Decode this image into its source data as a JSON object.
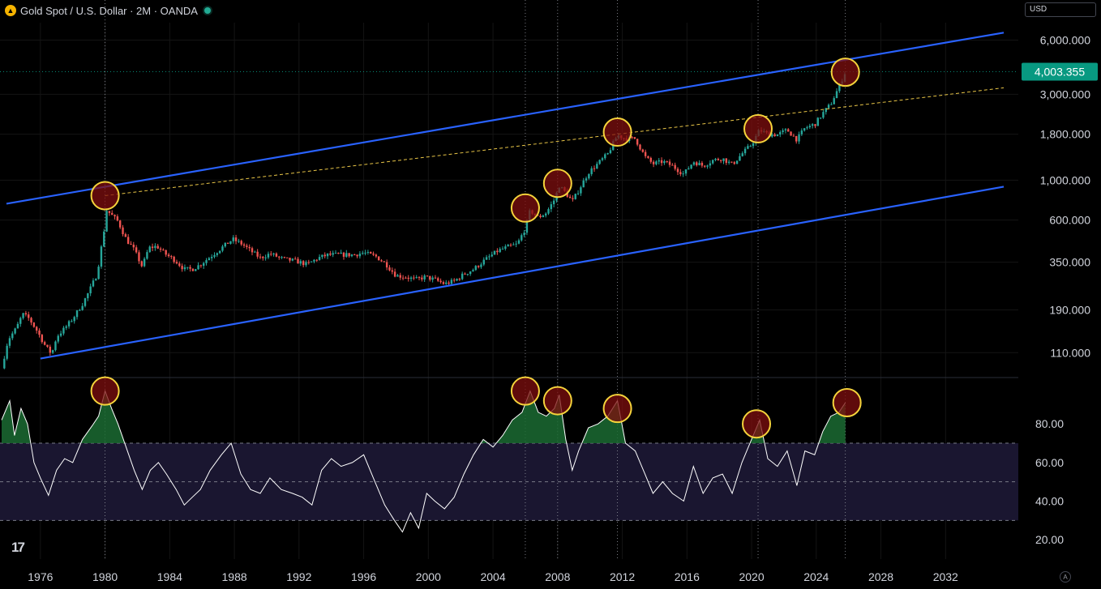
{
  "header": {
    "symbol_icon": "gold-coin-icon",
    "title": "Gold Spot / U.S. Dollar · 2M · OANDA",
    "status_color": "#22ab94"
  },
  "currency_select": {
    "value": "USD"
  },
  "colors": {
    "background": "#000000",
    "up_candle": "#26a69a",
    "down_candle": "#ef5350",
    "channel_line": "#2962ff",
    "dashed_trend": "#e8c547",
    "rsi_line": "#ffffff",
    "rsi_band": "#1a1630",
    "rsi_fill": "#1b6b32",
    "marker_fill": "#7f0f0f",
    "marker_stroke": "#f5d33b",
    "price_tag": "#089981"
  },
  "chart_data": [
    {
      "type": "candlestick",
      "pane": "price",
      "scale": "log",
      "x_range": [
        1973.5,
        2036.5
      ],
      "y_range": [
        80,
        7500
      ],
      "price_axis_ticks": [
        "6,000.000",
        "3,000.000",
        "1,800.000",
        "1,000.000",
        "600.000",
        "350.000",
        "190.000",
        "110.000"
      ],
      "price_tick_values": [
        6000,
        3000,
        1800,
        1000,
        600,
        350,
        190,
        110
      ],
      "last_price": "4,003.355",
      "last_price_value": 4003.355,
      "close_path": [
        [
          1973.6,
          90
        ],
        [
          1974.0,
          130
        ],
        [
          1974.5,
          150
        ],
        [
          1974.9,
          180
        ],
        [
          1975.3,
          170
        ],
        [
          1975.8,
          145
        ],
        [
          1976.3,
          120
        ],
        [
          1976.7,
          108
        ],
        [
          1977.0,
          135
        ],
        [
          1977.5,
          150
        ],
        [
          1978.0,
          170
        ],
        [
          1978.6,
          205
        ],
        [
          1979.0,
          240
        ],
        [
          1979.5,
          300
        ],
        [
          1979.9,
          500
        ],
        [
          1980.1,
          680
        ],
        [
          1980.4,
          640
        ],
        [
          1980.8,
          590
        ],
        [
          1981.3,
          470
        ],
        [
          1981.8,
          410
        ],
        [
          1982.3,
          330
        ],
        [
          1982.7,
          420
        ],
        [
          1983.2,
          430
        ],
        [
          1983.7,
          390
        ],
        [
          1984.3,
          360
        ],
        [
          1984.9,
          320
        ],
        [
          1985.4,
          320
        ],
        [
          1985.9,
          340
        ],
        [
          1986.5,
          375
        ],
        [
          1987.2,
          420
        ],
        [
          1987.9,
          470
        ],
        [
          1988.5,
          440
        ],
        [
          1989.0,
          405
        ],
        [
          1989.6,
          370
        ],
        [
          1990.2,
          390
        ],
        [
          1991.0,
          365
        ],
        [
          1991.8,
          355
        ],
        [
          1992.5,
          340
        ],
        [
          1993.2,
          370
        ],
        [
          1993.8,
          385
        ],
        [
          1994.6,
          385
        ],
        [
          1995.4,
          385
        ],
        [
          1996.0,
          395
        ],
        [
          1996.8,
          375
        ],
        [
          1997.4,
          340
        ],
        [
          1998.0,
          295
        ],
        [
          1998.6,
          290
        ],
        [
          1999.2,
          280
        ],
        [
          1999.8,
          290
        ],
        [
          2000.4,
          280
        ],
        [
          2001.0,
          265
        ],
        [
          2001.6,
          275
        ],
        [
          2002.2,
          300
        ],
        [
          2002.8,
          320
        ],
        [
          2003.5,
          360
        ],
        [
          2004.3,
          405
        ],
        [
          2004.9,
          425
        ],
        [
          2005.5,
          440
        ],
        [
          2006.0,
          540
        ],
        [
          2006.3,
          680
        ],
        [
          2006.8,
          620
        ],
        [
          2007.3,
          660
        ],
        [
          2007.8,
          780
        ],
        [
          2008.1,
          930
        ],
        [
          2008.5,
          850
        ],
        [
          2008.9,
          760
        ],
        [
          2009.3,
          880
        ],
        [
          2009.9,
          1100
        ],
        [
          2010.5,
          1240
        ],
        [
          2011.1,
          1400
        ],
        [
          2011.7,
          1780
        ],
        [
          2012.2,
          1700
        ],
        [
          2012.8,
          1700
        ],
        [
          2013.4,
          1350
        ],
        [
          2013.9,
          1230
        ],
        [
          2014.5,
          1270
        ],
        [
          2015.1,
          1200
        ],
        [
          2015.8,
          1080
        ],
        [
          2016.4,
          1270
        ],
        [
          2017.0,
          1200
        ],
        [
          2017.6,
          1290
        ],
        [
          2018.2,
          1320
        ],
        [
          2018.8,
          1220
        ],
        [
          2019.4,
          1400
        ],
        [
          2020.0,
          1580
        ],
        [
          2020.5,
          1900
        ],
        [
          2021.0,
          1800
        ],
        [
          2021.6,
          1790
        ],
        [
          2022.2,
          1900
        ],
        [
          2022.8,
          1680
        ],
        [
          2023.3,
          1950
        ],
        [
          2023.9,
          2040
        ],
        [
          2024.4,
          2350
        ],
        [
          2024.9,
          2650
        ],
        [
          2025.4,
          3300
        ],
        [
          2025.8,
          4003
        ]
      ],
      "channel_lines": [
        {
          "from": [
            1973.9,
            740
          ],
          "to": [
            2035.6,
            6600
          ]
        },
        {
          "from": [
            1976.0,
            102
          ],
          "to": [
            2035.6,
            920
          ]
        }
      ],
      "dashed_trendline": {
        "from": [
          1980.0,
          820
        ],
        "to": [
          2035.6,
          3260
        ]
      },
      "highlighted_peaks": [
        [
          1980.0,
          820
        ],
        [
          2006.0,
          700
        ],
        [
          2008.0,
          960
        ],
        [
          2011.7,
          1850
        ],
        [
          2020.4,
          1930
        ],
        [
          2025.8,
          3980
        ]
      ]
    },
    {
      "type": "line",
      "pane": "rsi",
      "y_range": [
        10,
        104
      ],
      "axis_ticks": [
        "80.00",
        "60.00",
        "40.00",
        "20.00"
      ],
      "axis_tick_values": [
        80,
        60,
        40,
        20
      ],
      "band": [
        30,
        70
      ],
      "midline": 50,
      "points": [
        [
          1973.6,
          82
        ],
        [
          1974.1,
          92
        ],
        [
          1974.4,
          74
        ],
        [
          1974.8,
          88
        ],
        [
          1975.2,
          80
        ],
        [
          1975.6,
          60
        ],
        [
          1976.0,
          52
        ],
        [
          1976.5,
          43
        ],
        [
          1977.0,
          56
        ],
        [
          1977.5,
          62
        ],
        [
          1978.0,
          60
        ],
        [
          1978.6,
          72
        ],
        [
          1979.2,
          79
        ],
        [
          1979.6,
          84
        ],
        [
          1980.0,
          97
        ],
        [
          1980.4,
          88
        ],
        [
          1980.8,
          80
        ],
        [
          1981.3,
          68
        ],
        [
          1981.8,
          56
        ],
        [
          1982.3,
          46
        ],
        [
          1982.8,
          56
        ],
        [
          1983.3,
          60
        ],
        [
          1983.8,
          54
        ],
        [
          1984.4,
          46
        ],
        [
          1984.9,
          38
        ],
        [
          1985.4,
          42
        ],
        [
          1985.9,
          46
        ],
        [
          1986.5,
          56
        ],
        [
          1987.2,
          64
        ],
        [
          1987.8,
          70
        ],
        [
          1988.4,
          54
        ],
        [
          1989.0,
          46
        ],
        [
          1989.6,
          44
        ],
        [
          1990.2,
          52
        ],
        [
          1990.9,
          46
        ],
        [
          1991.6,
          44
        ],
        [
          1992.2,
          42
        ],
        [
          1992.8,
          38
        ],
        [
          1993.4,
          56
        ],
        [
          1994.0,
          62
        ],
        [
          1994.6,
          58
        ],
        [
          1995.3,
          60
        ],
        [
          1996.0,
          64
        ],
        [
          1996.6,
          52
        ],
        [
          1997.3,
          38
        ],
        [
          1997.9,
          30
        ],
        [
          1998.4,
          24
        ],
        [
          1998.9,
          34
        ],
        [
          1999.4,
          26
        ],
        [
          1999.9,
          44
        ],
        [
          2000.4,
          40
        ],
        [
          2001.0,
          36
        ],
        [
          2001.6,
          42
        ],
        [
          2002.2,
          54
        ],
        [
          2002.8,
          64
        ],
        [
          2003.4,
          72
        ],
        [
          2004.0,
          68
        ],
        [
          2004.6,
          74
        ],
        [
          2005.2,
          82
        ],
        [
          2005.8,
          86
        ],
        [
          2006.3,
          97
        ],
        [
          2006.8,
          86
        ],
        [
          2007.3,
          84
        ],
        [
          2007.8,
          88
        ],
        [
          2008.1,
          95
        ],
        [
          2008.5,
          72
        ],
        [
          2008.9,
          56
        ],
        [
          2009.3,
          66
        ],
        [
          2009.9,
          78
        ],
        [
          2010.5,
          80
        ],
        [
          2011.1,
          84
        ],
        [
          2011.7,
          92
        ],
        [
          2012.2,
          70
        ],
        [
          2012.8,
          66
        ],
        [
          2013.4,
          54
        ],
        [
          2013.9,
          44
        ],
        [
          2014.5,
          50
        ],
        [
          2015.1,
          44
        ],
        [
          2015.8,
          40
        ],
        [
          2016.4,
          58
        ],
        [
          2017.0,
          44
        ],
        [
          2017.6,
          52
        ],
        [
          2018.2,
          54
        ],
        [
          2018.8,
          44
        ],
        [
          2019.4,
          60
        ],
        [
          2020.0,
          72
        ],
        [
          2020.5,
          82
        ],
        [
          2021.0,
          62
        ],
        [
          2021.6,
          58
        ],
        [
          2022.2,
          66
        ],
        [
          2022.8,
          48
        ],
        [
          2023.3,
          66
        ],
        [
          2023.9,
          64
        ],
        [
          2024.4,
          76
        ],
        [
          2024.9,
          84
        ],
        [
          2025.4,
          86
        ],
        [
          2025.8,
          91
        ]
      ],
      "highlighted_peaks": [
        [
          1980.0,
          97
        ],
        [
          2006.0,
          97
        ],
        [
          2008.0,
          92
        ],
        [
          2011.7,
          88
        ],
        [
          2020.3,
          80
        ],
        [
          2025.9,
          91
        ]
      ]
    }
  ],
  "time_axis": {
    "labels": [
      "1976",
      "1980",
      "1984",
      "1988",
      "1992",
      "1996",
      "2000",
      "2004",
      "2008",
      "2012",
      "2016",
      "2020",
      "2024",
      "2028",
      "2032"
    ],
    "values": [
      1976,
      1980,
      1984,
      1988,
      1992,
      1996,
      2000,
      2004,
      2008,
      2012,
      2016,
      2020,
      2024,
      2028,
      2032
    ]
  },
  "vertical_markers": [
    1980.0,
    2006.0,
    2008.0,
    2011.7,
    2020.4,
    2025.8
  ],
  "logo_text": "17",
  "footer_icon_text": "A"
}
